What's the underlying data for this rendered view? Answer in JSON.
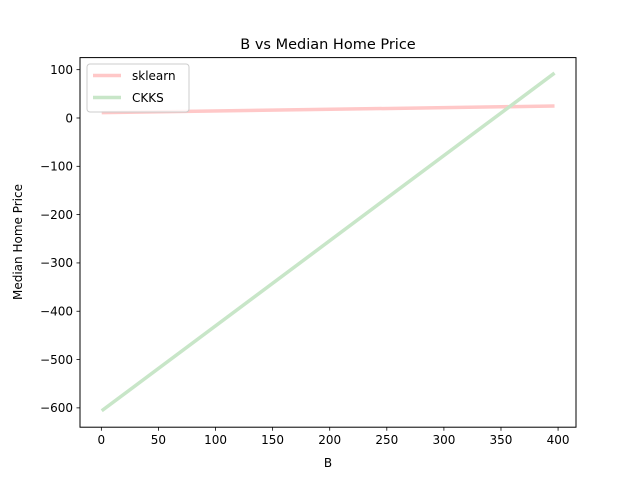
{
  "chart_data": {
    "type": "line",
    "title": "B vs Median Home Price",
    "xlabel": "B",
    "ylabel": "Median Home Price",
    "xlim": [
      -18.7,
      415.7
    ],
    "ylim": [
      -640,
      125
    ],
    "xticks": [
      0,
      50,
      100,
      150,
      200,
      250,
      300,
      350,
      400
    ],
    "yticks": [
      100,
      0,
      -100,
      -200,
      -300,
      -400,
      -500,
      -600
    ],
    "grid": false,
    "legend_position": "upper-left",
    "series": [
      {
        "name": "sklearn",
        "color": "#ffc8c8",
        "x": [
          0.32,
          396.9
        ],
        "y": [
          11.0,
          24.8
        ]
      },
      {
        "name": "CKKS",
        "color": "#c8e6c8",
        "x": [
          0.32,
          396.9
        ],
        "y": [
          -606.0,
          93.0
        ]
      }
    ]
  }
}
